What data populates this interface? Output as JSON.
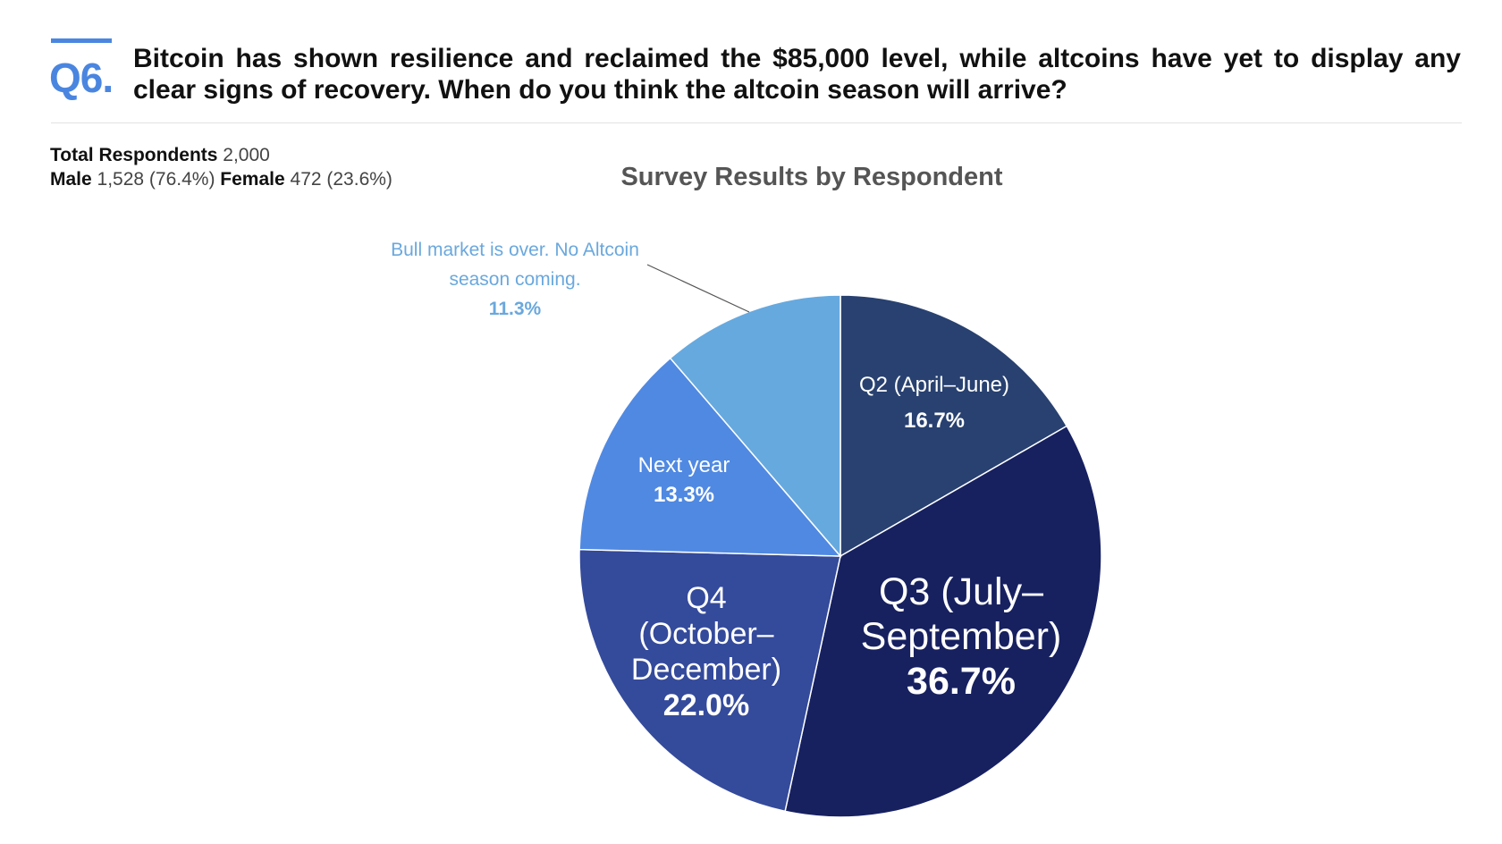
{
  "header": {
    "question_number": "Q6.",
    "question_text": "Bitcoin has shown resilience and reclaimed the $85,000 level, while altcoins have yet to display any clear signs of recovery. When do you think the altcoin season will arrive?"
  },
  "respondents": {
    "total_label": "Total Respondents",
    "total_value": "2,000",
    "male_label": "Male",
    "male_value": "1,528 (76.4%)",
    "female_label": "Female",
    "female_value": "472 (23.6%)"
  },
  "chart_data": {
    "type": "pie",
    "title": "Survey Results by Respondent",
    "slices": [
      {
        "label": "Q2 (April–June)",
        "value": 16.7,
        "value_label": "16.7%",
        "color": "#284170"
      },
      {
        "label": "Q3 (July–September)",
        "value": 36.7,
        "value_label": "36.7%",
        "color": "#172160"
      },
      {
        "label": "Q4 (October–December)",
        "value": 22.0,
        "value_label": "22.0%",
        "color": "#344a9b"
      },
      {
        "label": "Next year",
        "value": 13.3,
        "value_label": "13.3%",
        "color": "#5089e2"
      },
      {
        "label": "Bull market is over. No Altcoin season coming.",
        "value": 11.3,
        "value_label": "11.3%",
        "color": "#66a9df"
      }
    ],
    "start_angle": "12 o'clock",
    "direction": "clockwise",
    "legend": "none",
    "callout_color": "#6aa8dd"
  }
}
